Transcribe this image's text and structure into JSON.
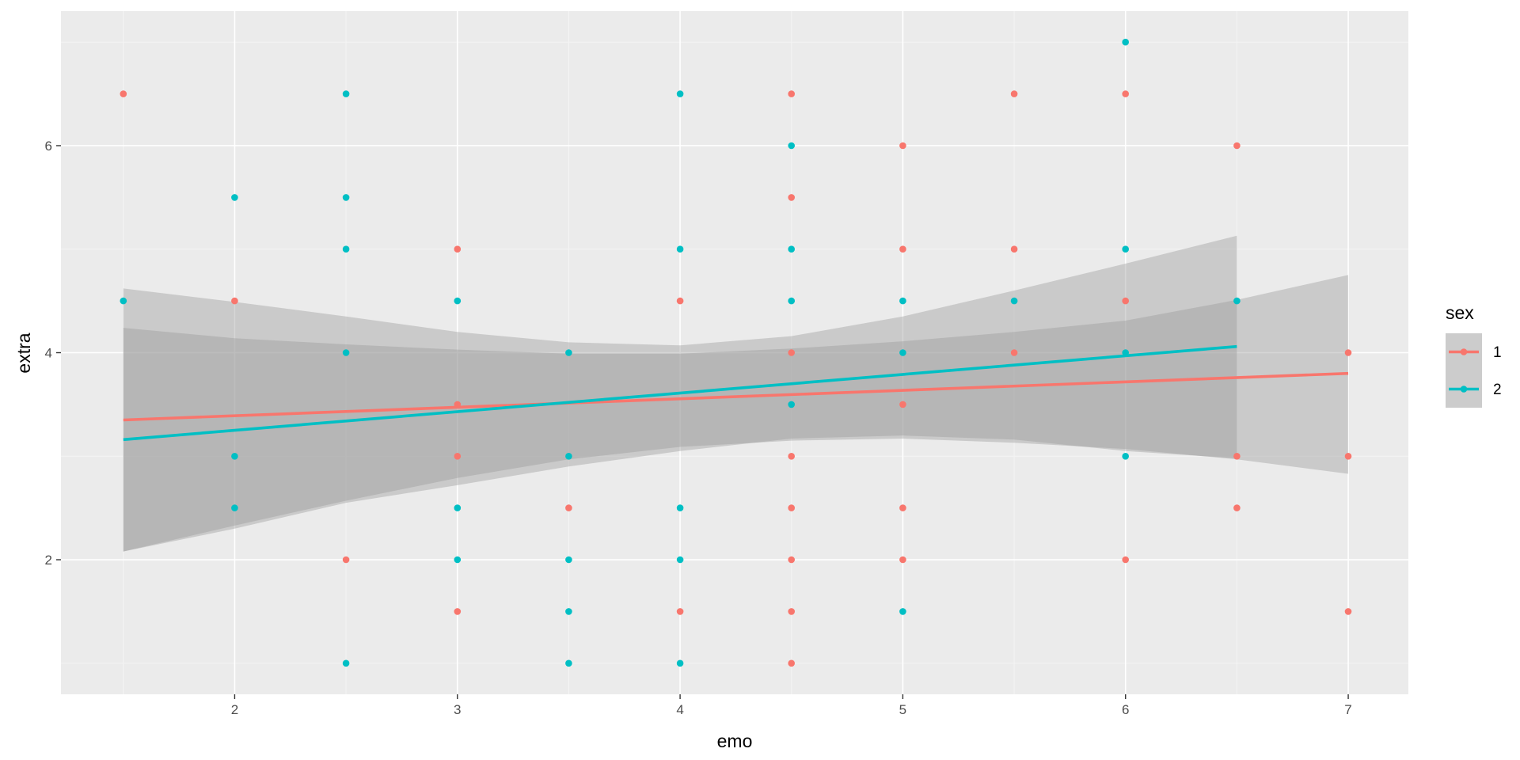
{
  "chart_data": {
    "type": "scatter",
    "xlabel": "emo",
    "ylabel": "extra",
    "xlim": [
      1.22,
      7.27
    ],
    "ylim": [
      0.7,
      7.3
    ],
    "x_ticks": [
      2,
      3,
      4,
      5,
      6,
      7
    ],
    "y_ticks": [
      2,
      4,
      6
    ],
    "grid": true,
    "legend": {
      "title": "sex",
      "position": "right"
    },
    "series": [
      {
        "name": "1",
        "color": "#F8766D",
        "points": [
          [
            1.5,
            6.5
          ],
          [
            2,
            4.5
          ],
          [
            2.5,
            2
          ],
          [
            3,
            5
          ],
          [
            3,
            3.5
          ],
          [
            3,
            3
          ],
          [
            3,
            1.5
          ],
          [
            3.5,
            2.5
          ],
          [
            4,
            4.5
          ],
          [
            4,
            1.5
          ],
          [
            4.5,
            6.5
          ],
          [
            4.5,
            5.5
          ],
          [
            4.5,
            4
          ],
          [
            4.5,
            3
          ],
          [
            4.5,
            2.5
          ],
          [
            4.5,
            2
          ],
          [
            4.5,
            1.5
          ],
          [
            4.5,
            1
          ],
          [
            5,
            6
          ],
          [
            5,
            5
          ],
          [
            5,
            3.5
          ],
          [
            5,
            2.5
          ],
          [
            5,
            2
          ],
          [
            5.5,
            6.5
          ],
          [
            5.5,
            5
          ],
          [
            5.5,
            4
          ],
          [
            6,
            6.5
          ],
          [
            6,
            4.5
          ],
          [
            6,
            2
          ],
          [
            6.5,
            6
          ],
          [
            6.5,
            3
          ],
          [
            6.5,
            2.5
          ],
          [
            7,
            4
          ],
          [
            7,
            3
          ],
          [
            7,
            1.5
          ]
        ],
        "fit": {
          "x": [
            1.5,
            7
          ],
          "y": [
            3.35,
            3.8
          ]
        },
        "ci": {
          "x": [
            1.5,
            2,
            2.5,
            3,
            3.5,
            4,
            4.5,
            5,
            5.5,
            6,
            6.5,
            7
          ],
          "upper": [
            4.24,
            4.14,
            4.08,
            4.03,
            3.99,
            3.99,
            4.04,
            4.11,
            4.2,
            4.31,
            4.51,
            4.75
          ],
          "lower": [
            2.08,
            2.33,
            2.57,
            2.79,
            2.97,
            3.09,
            3.15,
            3.17,
            3.13,
            3.07,
            2.97,
            2.83
          ]
        }
      },
      {
        "name": "2",
        "color": "#00BFC4",
        "points": [
          [
            1.5,
            4.5
          ],
          [
            2,
            5.5
          ],
          [
            2,
            3
          ],
          [
            2,
            2.5
          ],
          [
            2.5,
            6.5
          ],
          [
            2.5,
            5.5
          ],
          [
            2.5,
            5
          ],
          [
            2.5,
            4
          ],
          [
            2.5,
            1
          ],
          [
            3,
            4.5
          ],
          [
            3,
            2.5
          ],
          [
            3,
            2
          ],
          [
            3.5,
            4
          ],
          [
            3.5,
            3
          ],
          [
            3.5,
            2
          ],
          [
            3.5,
            1.5
          ],
          [
            3.5,
            1
          ],
          [
            4,
            6.5
          ],
          [
            4,
            5
          ],
          [
            4,
            2.5
          ],
          [
            4,
            2
          ],
          [
            4,
            1
          ],
          [
            4.5,
            6
          ],
          [
            4.5,
            5
          ],
          [
            4.5,
            4.5
          ],
          [
            4.5,
            3.5
          ],
          [
            5,
            4.5
          ],
          [
            5,
            4
          ],
          [
            5,
            1.5
          ],
          [
            5.5,
            4.5
          ],
          [
            6,
            7
          ],
          [
            6,
            5
          ],
          [
            6,
            4
          ],
          [
            6,
            3
          ],
          [
            6.5,
            4.5
          ]
        ],
        "fit": {
          "x": [
            1.5,
            6.5
          ],
          "y": [
            3.16,
            4.06
          ]
        },
        "ci": {
          "x": [
            1.5,
            2,
            2.5,
            3,
            3.5,
            4,
            4.5,
            5,
            5.5,
            6,
            6.5
          ],
          "upper": [
            4.62,
            4.49,
            4.35,
            4.2,
            4.1,
            4.07,
            4.16,
            4.35,
            4.6,
            4.86,
            5.13
          ],
          "lower": [
            2.08,
            2.3,
            2.55,
            2.72,
            2.9,
            3.05,
            3.17,
            3.2,
            3.16,
            3.05,
            2.98
          ]
        }
      }
    ]
  }
}
